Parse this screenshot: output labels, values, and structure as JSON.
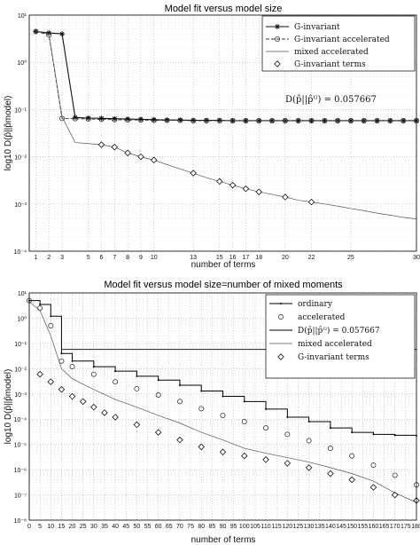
{
  "chart_data": [
    {
      "type": "line",
      "title": "Model fit versus model size",
      "xlabel": "number of terms",
      "ylabel": "log10 D(p̂||p̂model)",
      "yscale": "log",
      "xlim": [
        0.5,
        30
      ],
      "ylim": [
        0.0001,
        10
      ],
      "grid": true,
      "legend_position": "top-right",
      "x_ticks": [
        1,
        2,
        3,
        5,
        6,
        7,
        8,
        9,
        10,
        13,
        15,
        16,
        17,
        18,
        20,
        22,
        25,
        30
      ],
      "y_tick_labels": [
        "10⁻⁴",
        "10⁻³",
        "10⁻²",
        "10⁻¹",
        "10⁰",
        "10¹"
      ],
      "annotation": "D(p̂||p̂ᴳ) = 0.057667",
      "annotation_value": 0.057667,
      "series": [
        {
          "name": "G-invariant",
          "style": "solid-star",
          "x": [
            1,
            2,
            3,
            4,
            5,
            6,
            7,
            8,
            9,
            10,
            11,
            12,
            13,
            14,
            15,
            16,
            17,
            18,
            19,
            20,
            21,
            22,
            23,
            24,
            25,
            26,
            27,
            28,
            29,
            30
          ],
          "y": [
            4.5,
            4.2,
            4.0,
            0.068,
            0.066,
            0.065,
            0.064,
            0.063,
            0.062,
            0.061,
            0.06,
            0.06,
            0.059,
            0.059,
            0.059,
            0.058,
            0.058,
            0.058,
            0.058,
            0.058,
            0.058,
            0.058,
            0.058,
            0.058,
            0.058,
            0.058,
            0.058,
            0.058,
            0.058,
            0.058
          ]
        },
        {
          "name": "G-invariant accelerated",
          "style": "dashed-circle",
          "x": [
            1,
            2,
            3,
            4,
            5,
            6,
            7,
            8,
            9,
            10,
            11,
            12,
            13,
            14,
            15,
            16,
            17,
            18,
            19,
            20,
            21,
            22,
            23,
            24,
            25,
            26,
            27,
            28,
            29,
            30
          ],
          "y": [
            4.5,
            3.8,
            0.065,
            0.064,
            0.063,
            0.062,
            0.061,
            0.06,
            0.06,
            0.059,
            0.059,
            0.059,
            0.058,
            0.058,
            0.058,
            0.058,
            0.058,
            0.058,
            0.058,
            0.058,
            0.058,
            0.058,
            0.058,
            0.058,
            0.058,
            0.058,
            0.058,
            0.058,
            0.058,
            0.058
          ]
        },
        {
          "name": "mixed accelerated",
          "style": "solid-thin",
          "x": [
            1,
            2,
            3,
            4,
            5,
            6,
            7,
            8,
            9,
            10,
            11,
            12,
            13,
            14,
            15,
            16,
            17,
            18,
            19,
            20,
            21,
            22,
            23,
            24,
            25,
            26,
            27,
            28,
            29,
            30
          ],
          "y": [
            4.5,
            4.0,
            0.07,
            0.02,
            0.019,
            0.018,
            0.016,
            0.012,
            0.01,
            0.0085,
            0.0068,
            0.0055,
            0.0045,
            0.0036,
            0.003,
            0.0025,
            0.0021,
            0.0018,
            0.0016,
            0.0014,
            0.0012,
            0.0011,
            0.001,
            0.0009,
            0.0008,
            0.00072,
            0.00064,
            0.00058,
            0.00052,
            0.00048
          ]
        },
        {
          "name": "G-invariant terms",
          "style": "diamond",
          "x": [
            6,
            7,
            8,
            9,
            10,
            13,
            15,
            16,
            17,
            18,
            20,
            22
          ],
          "y": [
            0.018,
            0.016,
            0.012,
            0.01,
            0.0085,
            0.0045,
            0.003,
            0.0025,
            0.0021,
            0.0018,
            0.0014,
            0.0011
          ]
        }
      ]
    },
    {
      "type": "line",
      "title": "Model fit versus model size=number of mixed moments",
      "xlabel": "number of terms",
      "ylabel": "log10 D(p̂||p̂model)",
      "yscale": "log",
      "xlim": [
        0,
        180
      ],
      "ylim": [
        1e-08,
        10
      ],
      "grid": true,
      "legend_position": "top-right",
      "x_ticks": [
        0,
        5,
        10,
        15,
        20,
        25,
        30,
        35,
        40,
        45,
        50,
        55,
        60,
        65,
        70,
        75,
        80,
        85,
        90,
        95,
        100,
        105,
        110,
        115,
        120,
        125,
        130,
        135,
        140,
        145,
        150,
        155,
        160,
        165,
        170,
        175,
        180
      ],
      "y_tick_labels": [
        "10⁻⁸",
        "10⁻⁷",
        "10⁻⁶",
        "10⁻⁵",
        "10⁻⁴",
        "10⁻³",
        "10⁻²",
        "10⁻¹",
        "10⁰",
        "10¹"
      ],
      "annotation_value": 0.057667,
      "series": [
        {
          "name": "ordinary",
          "style": "solid-dot",
          "x": [
            0,
            5,
            10,
            15,
            20,
            30,
            40,
            50,
            60,
            70,
            80,
            90,
            100,
            110,
            120,
            130,
            140,
            150,
            160,
            170,
            180
          ],
          "y": [
            5,
            3.5,
            1.2,
            0.04,
            0.02,
            0.012,
            0.008,
            0.005,
            0.0035,
            0.0022,
            0.0013,
            0.0008,
            0.0005,
            0.00025,
            0.00012,
            8e-05,
            4.5e-05,
            3e-05,
            2.5e-05,
            2.3e-05,
            2.2e-05
          ]
        },
        {
          "name": "accelerated",
          "style": "circle",
          "x": [
            0,
            5,
            10,
            15,
            20,
            30,
            40,
            50,
            60,
            70,
            80,
            90,
            100,
            110,
            120,
            130,
            140,
            150,
            160,
            170,
            180
          ],
          "y": [
            5,
            2.5,
            0.5,
            0.02,
            0.012,
            0.006,
            0.003,
            0.0016,
            0.0009,
            0.0005,
            0.00026,
            0.00014,
            8e-05,
            4.5e-05,
            2.5e-05,
            1.4e-05,
            7e-06,
            3.5e-06,
            1.5e-06,
            6e-07,
            2.5e-07
          ]
        },
        {
          "name": "D(p̂||p̂ᴳ) = 0.057667",
          "style": "solid-flat",
          "x": [
            15,
            180
          ],
          "y": [
            0.057667,
            0.057667
          ]
        },
        {
          "name": "mixed accelerated",
          "style": "solid-thin",
          "x": [
            0,
            5,
            10,
            15,
            20,
            30,
            40,
            50,
            60,
            70,
            80,
            90,
            100,
            110,
            120,
            130,
            140,
            150,
            160,
            170,
            180
          ],
          "y": [
            4.5,
            2,
            0.2,
            0.01,
            0.004,
            0.0015,
            0.0006,
            0.0003,
            0.00014,
            7e-05,
            3e-05,
            1.5e-05,
            7e-06,
            4.5e-06,
            3e-06,
            2e-06,
            1.2e-06,
            7e-07,
            3.5e-07,
            1.2e-07,
            5e-08
          ]
        },
        {
          "name": "G-invariant terms",
          "style": "diamond",
          "x": [
            5,
            10,
            15,
            20,
            25,
            30,
            35,
            40,
            50,
            60,
            70,
            80,
            90,
            100,
            110,
            120,
            130,
            140,
            150,
            160,
            170,
            180
          ],
          "y": [
            0.006,
            0.003,
            0.0015,
            0.0008,
            0.0005,
            0.0003,
            0.00018,
            0.00012,
            6e-05,
            3e-05,
            1.5e-05,
            8e-06,
            5e-06,
            3.5e-06,
            2.5e-06,
            1.8e-06,
            1.2e-06,
            7e-07,
            4e-07,
            2e-07,
            1e-07,
            6e-08
          ]
        }
      ]
    }
  ]
}
